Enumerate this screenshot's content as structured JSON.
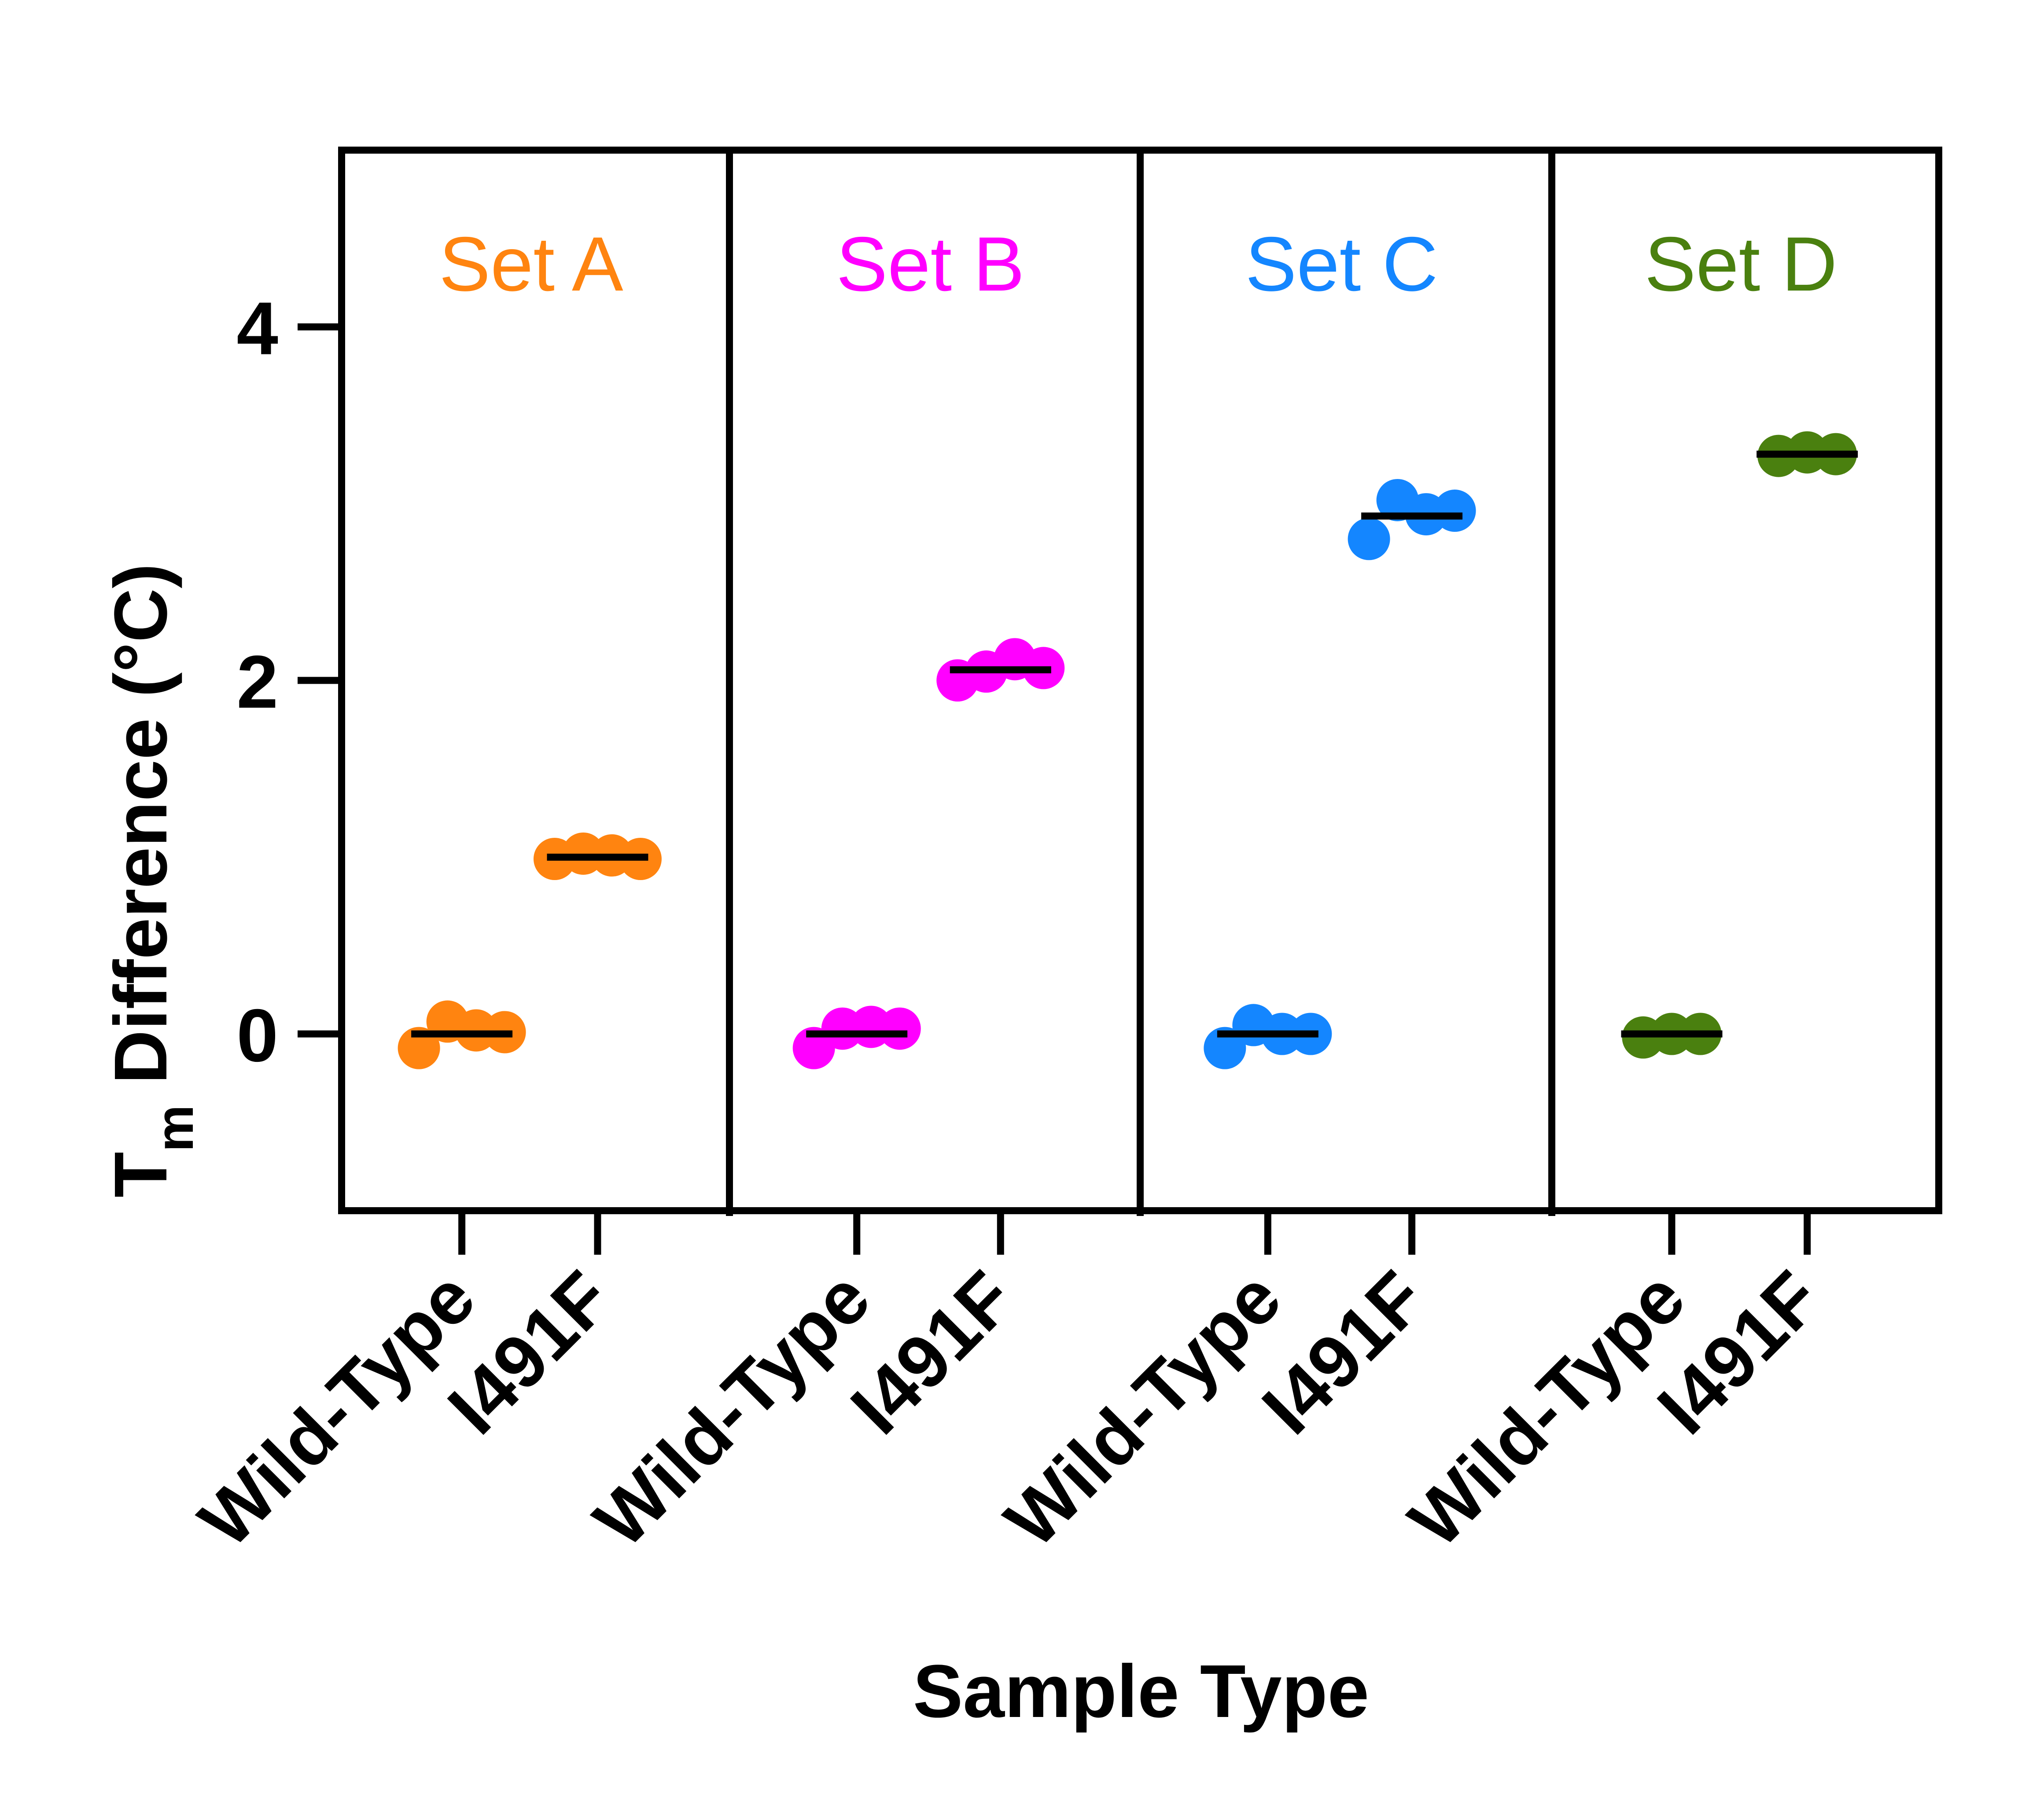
{
  "chart_data": {
    "type": "scatter",
    "ylabel": {
      "main": "T",
      "subscript": "m",
      "rest": " Difference (°C)"
    },
    "xlabel": "Sample Type",
    "ylim": [
      -1,
      5
    ],
    "yticks": [
      0,
      2,
      4
    ],
    "grid": false,
    "categories": [
      "Wild-Type",
      "I491F"
    ],
    "panels": [
      {
        "name": "Set A",
        "color": "#FF8410",
        "groups": [
          {
            "label": "Wild-Type",
            "mean": 0.0,
            "points": [
              -0.08,
              0.07,
              0.02,
              0.01
            ]
          },
          {
            "label": "I491F",
            "mean": 1.0,
            "points": [
              0.99,
              1.02,
              1.01,
              0.99
            ]
          }
        ]
      },
      {
        "name": "Set B",
        "color": "#FF00FF",
        "groups": [
          {
            "label": "Wild-Type",
            "mean": 0.0,
            "points": [
              -0.08,
              0.03,
              0.04,
              0.03
            ]
          },
          {
            "label": "I491F",
            "mean": 2.06,
            "points": [
              2.0,
              2.05,
              2.12,
              2.07
            ]
          }
        ]
      },
      {
        "name": "Set C",
        "color": "#1486FF",
        "groups": [
          {
            "label": "Wild-Type",
            "mean": 0.0,
            "points": [
              -0.08,
              0.05,
              0.0,
              0.0
            ]
          },
          {
            "label": "I491F",
            "mean": 2.93,
            "points": [
              2.8,
              3.02,
              2.94,
              2.96
            ]
          }
        ]
      },
      {
        "name": "Set D",
        "color": "#4A800F",
        "groups": [
          {
            "label": "Wild-Type",
            "mean": 0.0,
            "points": [
              -0.02,
              0.0,
              0.0
            ]
          },
          {
            "label": "I491F",
            "mean": 3.28,
            "points": [
              3.27,
              3.29,
              3.28
            ]
          }
        ]
      }
    ]
  }
}
